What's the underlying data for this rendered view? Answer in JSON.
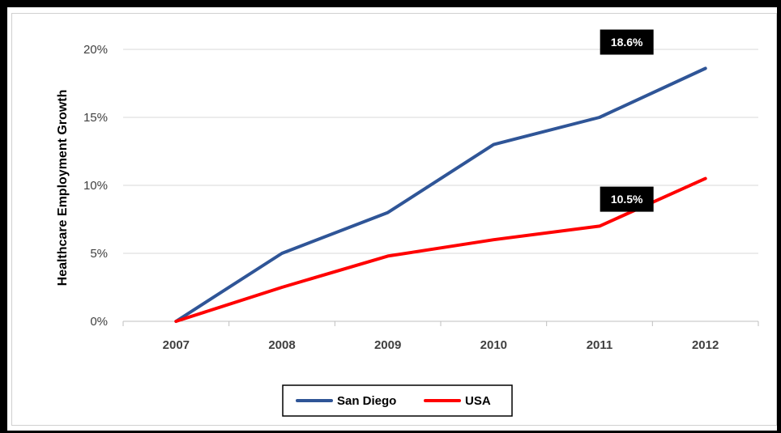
{
  "chart_data": {
    "type": "line",
    "x": [
      "2007",
      "2008",
      "2009",
      "2010",
      "2011",
      "2012"
    ],
    "ylabel": "Healthcare Employment Growth",
    "ylim": [
      0,
      20
    ],
    "yticks": [
      "0%",
      "5%",
      "10%",
      "15%",
      "20%"
    ],
    "grid": "horizontal",
    "legend_position": "bottom",
    "series": [
      {
        "name": "San Diego",
        "color": "#2F5597",
        "values": [
          0,
          5,
          8,
          13,
          15,
          18.6
        ]
      },
      {
        "name": "USA",
        "color": "#FF0000",
        "values": [
          0,
          2.5,
          4.8,
          6,
          7,
          10.5
        ]
      }
    ],
    "annotations": [
      {
        "series": "San Diego",
        "x": "2012",
        "text": "18.6%"
      },
      {
        "series": "USA",
        "x": "2012",
        "text": "10.5%"
      }
    ]
  }
}
